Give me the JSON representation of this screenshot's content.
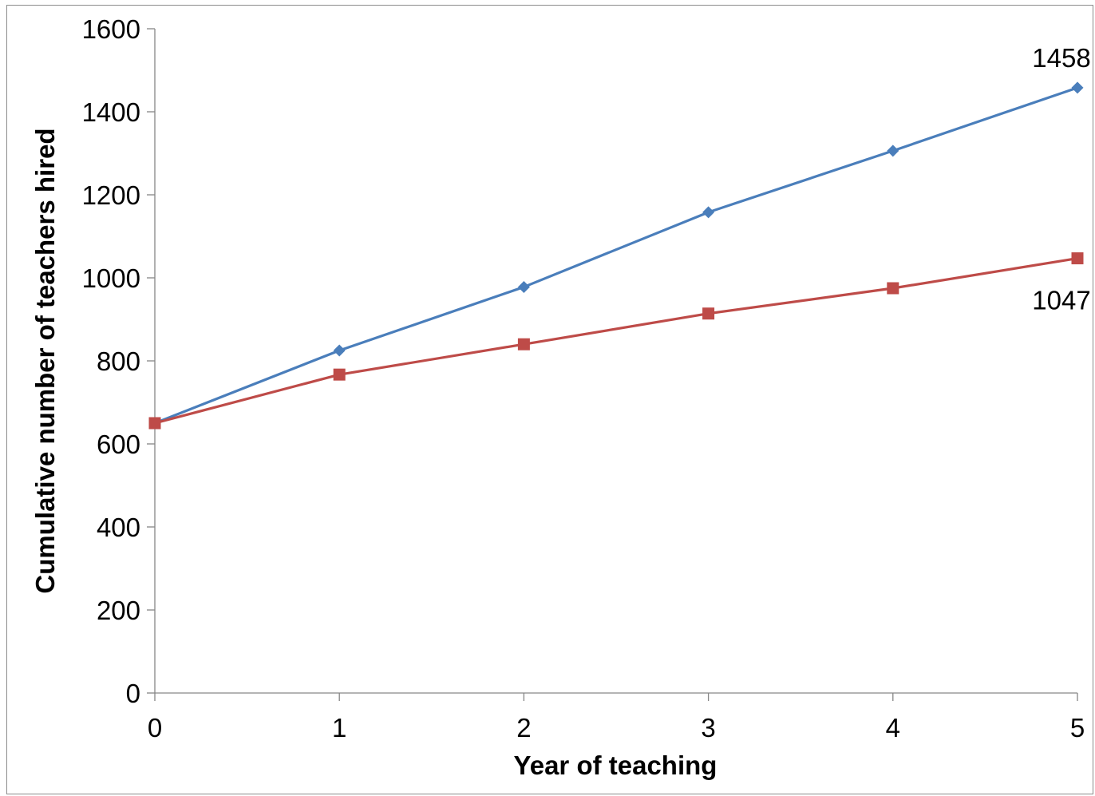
{
  "chart_data": {
    "type": "line",
    "title": "",
    "xlabel": "Year of teaching",
    "ylabel": "Cumulative number of teachers hired",
    "x": [
      0,
      1,
      2,
      3,
      4,
      5
    ],
    "x_tick_labels": [
      "0",
      "1",
      "2",
      "3",
      "4",
      "5"
    ],
    "xlim": [
      0,
      5
    ],
    "ylim": [
      0,
      1600
    ],
    "y_ticks": [
      0,
      200,
      400,
      600,
      800,
      1000,
      1200,
      1400,
      1600
    ],
    "y_tick_labels": [
      "0",
      "200",
      "400",
      "600",
      "800",
      "1000",
      "1200",
      "1400",
      "1600"
    ],
    "grid": false,
    "legend": "none",
    "series": [
      {
        "values": [
          650,
          825,
          978,
          1158,
          1306,
          1458
        ],
        "color": "#4a7ebb",
        "marker": "diamond"
      },
      {
        "values": [
          650,
          767,
          840,
          914,
          975,
          1047
        ],
        "color": "#be4b48",
        "marker": "square"
      }
    ],
    "data_labels": [
      {
        "series": 0,
        "index": 5,
        "text": "1458",
        "position": "above"
      },
      {
        "series": 1,
        "index": 5,
        "text": "1047",
        "position": "below"
      }
    ]
  }
}
